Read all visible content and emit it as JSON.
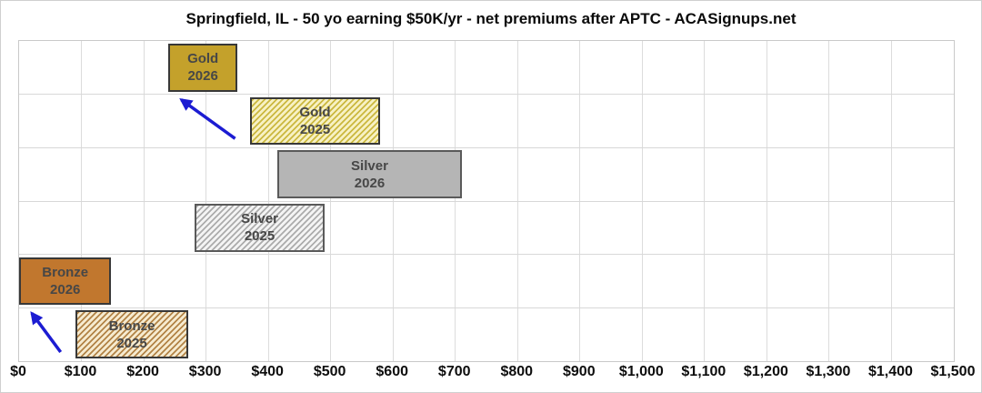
{
  "chart_data": {
    "type": "bar",
    "orientation": "horizontal-range",
    "title": "Springfield, IL - 50 yo earning $50K/yr - net premiums after APTC - ACASignups.net",
    "xlabel": "",
    "ylabel": "",
    "xlim": [
      0,
      1500
    ],
    "x_tick_step": 100,
    "x_tick_labels": [
      "$0",
      "$100",
      "$200",
      "$300",
      "$400",
      "$500",
      "$600",
      "$700",
      "$800",
      "$900",
      "$1,000",
      "$1,100",
      "$1,200",
      "$1,300",
      "$1,400",
      "$1,500"
    ],
    "grid": true,
    "legend": "none",
    "bars": [
      {
        "label": "Gold 2026",
        "line1": "Gold",
        "line2": "2026",
        "min": 240,
        "max": 350,
        "style": "gold-solid"
      },
      {
        "label": "Gold 2025",
        "line1": "Gold",
        "line2": "2025",
        "min": 370,
        "max": 580,
        "style": "gold-hatch"
      },
      {
        "label": "Silver 2026",
        "line1": "Silver",
        "line2": "2026",
        "min": 415,
        "max": 710,
        "style": "silver-solid"
      },
      {
        "label": "Silver 2025",
        "line1": "Silver",
        "line2": "2025",
        "min": 282,
        "max": 490,
        "style": "silver-hatch"
      },
      {
        "label": "Bronze 2026",
        "line1": "Bronze",
        "line2": "2026",
        "min": 0,
        "max": 148,
        "style": "bronze-solid"
      },
      {
        "label": "Bronze 2025",
        "line1": "Bronze",
        "line2": "2025",
        "min": 90,
        "max": 272,
        "style": "bronze-hatch"
      }
    ],
    "annotations": [
      {
        "type": "arrow",
        "from": "Gold 2025",
        "to": "Gold 2026"
      },
      {
        "type": "arrow",
        "from": "Bronze 2025",
        "to": "Bronze 2026"
      }
    ],
    "colors": {
      "gold_solid": "#c4a12b",
      "gold_hatch_bg": "#f7f1c4",
      "gold_hatch_stripe": "#cbb83f",
      "silver_solid": "#b5b5b5",
      "silver_hatch_bg": "#f4f4f4",
      "silver_hatch_stripe": "#acacac",
      "bronze_solid": "#c1772e",
      "bronze_hatch_bg": "#f6ebd0",
      "bronze_hatch_stripe": "#b28346",
      "bar_border": "#383838",
      "silver_border": "#5a5a5a",
      "bar_label_text": "#474747",
      "arrow": "#1c1cd2",
      "gridline": "#dcdcdc"
    }
  }
}
